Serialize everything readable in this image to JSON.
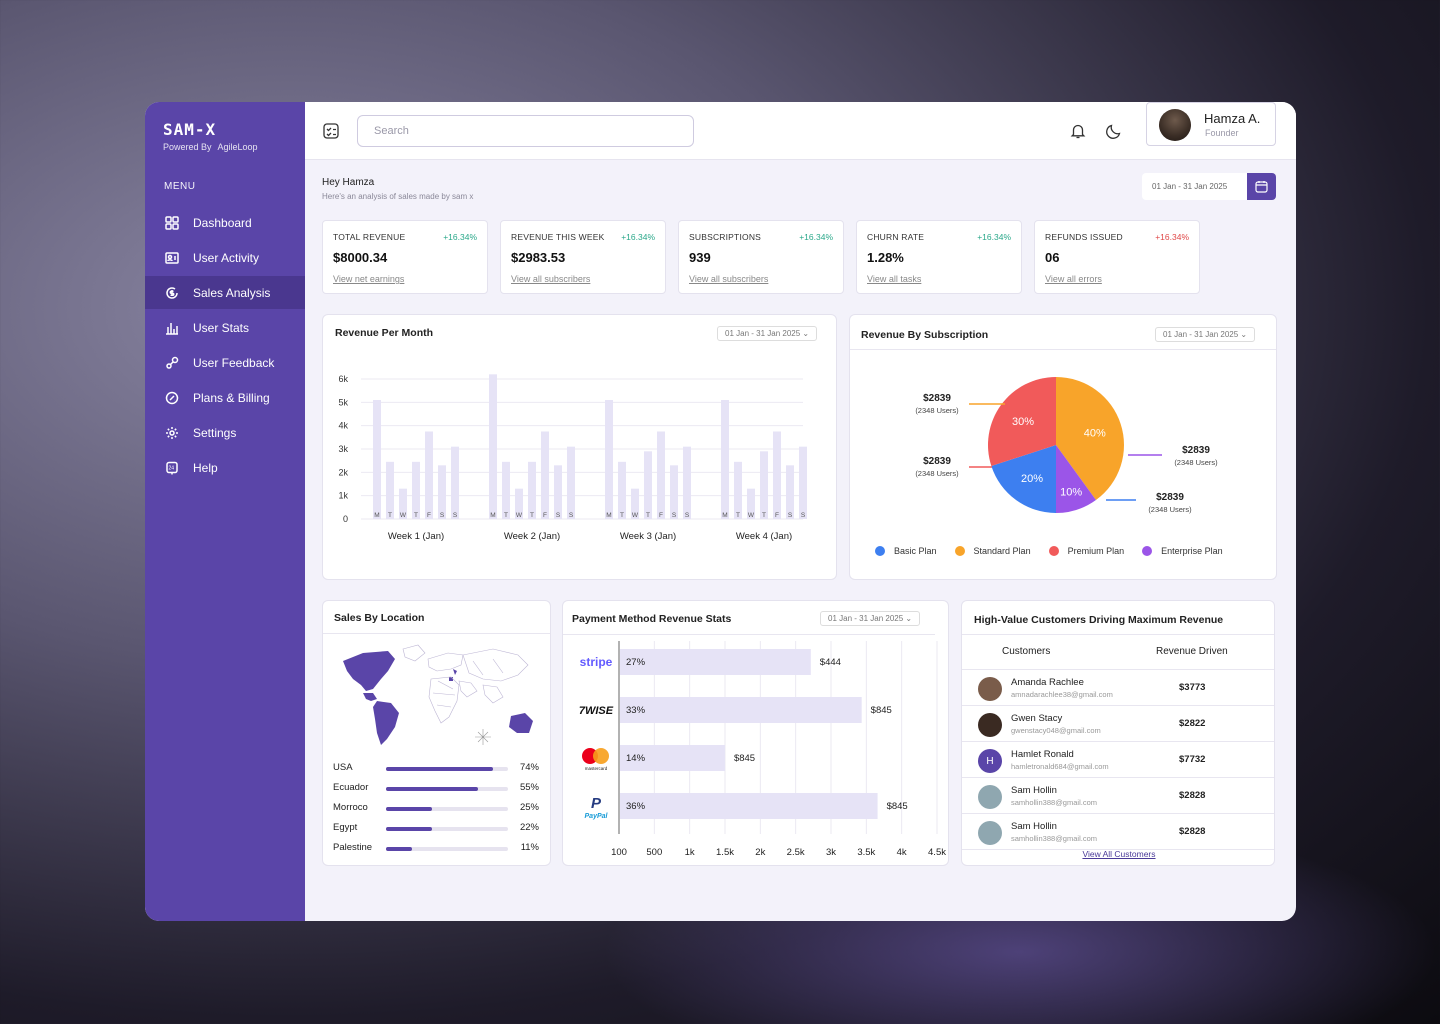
{
  "brand": {
    "name": "SAM-X",
    "powered": "Powered By",
    "partner": "AgileLoop"
  },
  "menu_title": "MENU",
  "nav": [
    "Dashboard",
    "User Activity",
    "Sales Analysis",
    "User Stats",
    "User Feedback",
    "Plans & Billing",
    "Settings",
    "Help"
  ],
  "search_placeholder": "Search",
  "user": {
    "name": "Hamza A.",
    "role": "Founder"
  },
  "greeting": {
    "title": "Hey Hamza",
    "subtitle": "Here's an analysis of sales made by sam x"
  },
  "date_range": "01 Jan - 31 Jan 2025",
  "kpis": [
    {
      "title": "TOTAL REVENUE",
      "delta": "+16.34%",
      "value": "$8000.34",
      "link": "View net earnings"
    },
    {
      "title": "REVENUE THIS WEEK",
      "delta": "+16.34%",
      "value": "$2983.53",
      "link": "View all subscribers"
    },
    {
      "title": "SUBSCRIPTIONS",
      "delta": "+16.34%",
      "value": "939",
      "link": "View all subscribers"
    },
    {
      "title": "CHURN RATE",
      "delta": "+16.34%",
      "value": "1.28%",
      "link": "View all tasks"
    },
    {
      "title": "REFUNDS ISSUED",
      "delta": "+16.34%",
      "value": "06",
      "link": "View all errors"
    }
  ],
  "colors": {
    "accent": "#5a45a8",
    "positive": "#2aa88a",
    "negative": "#e04848",
    "bar": "#e6e3f6"
  },
  "chart_data": [
    {
      "type": "bar",
      "title": "Revenue Per Month",
      "date": "01 Jan - 31 Jan 2025",
      "ylim": [
        0,
        6000
      ],
      "yticks": [
        "0",
        "1k",
        "2k",
        "3k",
        "4k",
        "5k",
        "6k"
      ],
      "days": [
        "M",
        "T",
        "W",
        "T",
        "F",
        "S",
        "S"
      ],
      "weeks": [
        {
          "label": "Week 1 (Jan)",
          "values": [
            5100,
            2450,
            1300,
            2450,
            3750,
            2300,
            3100
          ]
        },
        {
          "label": "Week 2 (Jan)",
          "values": [
            6200,
            2450,
            1300,
            2450,
            3750,
            2300,
            3100
          ]
        },
        {
          "label": "Week 3 (Jan)",
          "values": [
            5100,
            2450,
            1300,
            2900,
            3750,
            2300,
            3100
          ]
        },
        {
          "label": "Week 4 (Jan)",
          "values": [
            5100,
            2450,
            1300,
            2900,
            3750,
            2300,
            3100
          ]
        }
      ]
    },
    {
      "type": "pie",
      "title": "Revenue By Subscription",
      "date": "01 Jan - 31 Jan 2025",
      "slices": [
        {
          "name": "Standard Plan",
          "pct": 40,
          "label": "40%",
          "color": "#f8a42a",
          "amount": "$2839",
          "users": "(2348 Users)"
        },
        {
          "name": "Enterprise Plan",
          "pct": 10,
          "label": "10%",
          "color": "#9b55e8",
          "amount": "$2839",
          "users": "(2348 Users)"
        },
        {
          "name": "Basic Plan",
          "pct": 20,
          "label": "20%",
          "color": "#3d7ff0",
          "amount": "$2839",
          "users": "(2348 Users)"
        },
        {
          "name": "Premium Plan",
          "pct": 30,
          "label": "30%",
          "color": "#f15a5a",
          "amount": "$2839",
          "users": "(2348 Users)"
        }
      ],
      "legend": [
        "Basic Plan",
        "Standard Plan",
        "Premium Plan",
        "Enterprise Plan"
      ]
    },
    {
      "type": "bar",
      "orientation": "horizontal",
      "title": "Payment Method Revenue Stats",
      "date": "01 Jan - 31 Jan 2025",
      "xticks": [
        "100",
        "500",
        "1k",
        "1.5k",
        "2k",
        "2.5k",
        "3k",
        "3.5k",
        "4k",
        "4.5k"
      ],
      "rows": [
        {
          "method": "stripe",
          "pct": "27%",
          "value": "$444",
          "frac": 0.6
        },
        {
          "method": "wise",
          "pct": "33%",
          "value": "$845",
          "frac": 0.76
        },
        {
          "method": "mastercard",
          "pct": "14%",
          "value": "$845",
          "frac": 0.33
        },
        {
          "method": "paypal",
          "pct": "36%",
          "value": "$845",
          "frac": 0.81
        }
      ]
    }
  ],
  "locations": {
    "title": "Sales By Location",
    "rows": [
      {
        "country": "USA",
        "pct": "74%",
        "frac": 0.88
      },
      {
        "country": "Ecuador",
        "pct": "55%",
        "frac": 0.75
      },
      {
        "country": "Morroco",
        "pct": "25%",
        "frac": 0.38
      },
      {
        "country": "Egypt",
        "pct": "22%",
        "frac": 0.38
      },
      {
        "country": "Palestine",
        "pct": "11%",
        "frac": 0.21
      }
    ]
  },
  "customers": {
    "title": "High-Value Customers Driving Maximum Revenue",
    "col1": "Customers",
    "col2": "Revenue Driven",
    "link": "View All Customers",
    "rows": [
      {
        "name": "Amanda Rachlee",
        "email": "amnadarachlee38@gmail.com",
        "revenue": "$3773",
        "initial": ""
      },
      {
        "name": "Gwen Stacy",
        "email": "gwenstacy048@gmail.com",
        "revenue": "$2822",
        "initial": ""
      },
      {
        "name": "Hamlet Ronald",
        "email": "hamletronald684@gmail.com",
        "revenue": "$7732",
        "initial": "H"
      },
      {
        "name": "Sam Hollin",
        "email": "samhollin388@gmail.com",
        "revenue": "$2828",
        "initial": ""
      },
      {
        "name": "Sam Hollin",
        "email": "samhollin388@gmail.com",
        "revenue": "$2828",
        "initial": ""
      }
    ]
  },
  "payment_labels": {
    "stripe": "stripe",
    "wise": "7WISE",
    "mastercard": "mastercard",
    "paypal": "PayPal"
  }
}
